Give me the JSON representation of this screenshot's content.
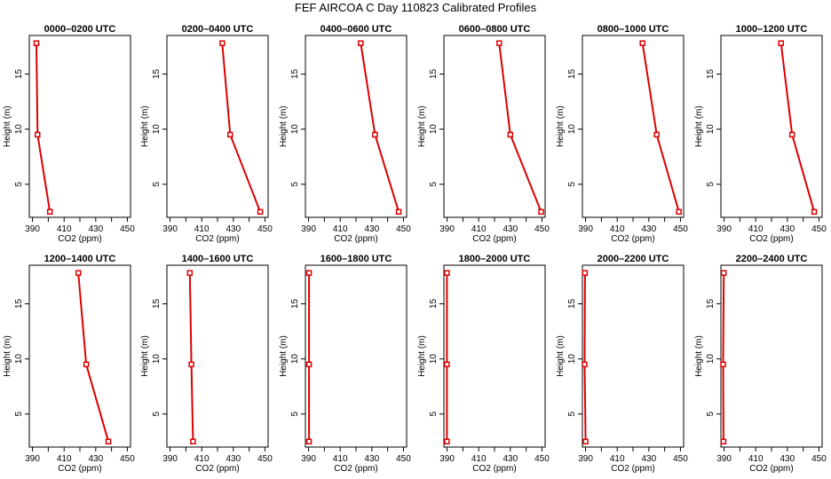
{
  "title": "FEF AIRCOA C  Day 110823  Calibrated Profiles",
  "chart_data": {
    "type": "line",
    "xlabel": "CO2 (ppm)",
    "ylabel": "Height (m)",
    "xlim": [
      388,
      452
    ],
    "ylim": [
      2,
      18.5
    ],
    "x_ticks": [
      390,
      410,
      430,
      450
    ],
    "x_minor_ticks": [
      400,
      420,
      440
    ],
    "y_ticks": [
      5,
      10,
      15
    ],
    "heights": [
      2.5,
      9.5,
      17.8
    ],
    "panels": [
      {
        "title": "0000–0200 UTC",
        "co2": [
          401.0,
          393.2,
          392.5
        ]
      },
      {
        "title": "0200–0400 UTC",
        "co2": [
          447.0,
          428.0,
          423.0
        ]
      },
      {
        "title": "0400–0600 UTC",
        "co2": [
          447.0,
          432.0,
          423.0
        ]
      },
      {
        "title": "0600–0800 UTC",
        "co2": [
          449.5,
          430.0,
          423.0
        ]
      },
      {
        "title": "0800–1000 UTC",
        "co2": [
          449.0,
          435.0,
          426.0
        ]
      },
      {
        "title": "1000–1200 UTC",
        "co2": [
          447.0,
          433.0,
          426.0
        ]
      },
      {
        "title": "1200–1400 UTC",
        "co2": [
          438.0,
          424.0,
          419.0
        ]
      },
      {
        "title": "1400–1600 UTC",
        "co2": [
          404.5,
          403.5,
          402.5
        ]
      },
      {
        "title": "1600–1800 UTC",
        "co2": [
          390.3,
          390.3,
          390.3
        ]
      },
      {
        "title": "1800–2000 UTC",
        "co2": [
          389.9,
          389.9,
          389.9
        ]
      },
      {
        "title": "2000–2200 UTC",
        "co2": [
          390.0,
          389.4,
          389.6
        ]
      },
      {
        "title": "2200–2400 UTC",
        "co2": [
          389.6,
          389.4,
          389.8
        ]
      }
    ]
  }
}
